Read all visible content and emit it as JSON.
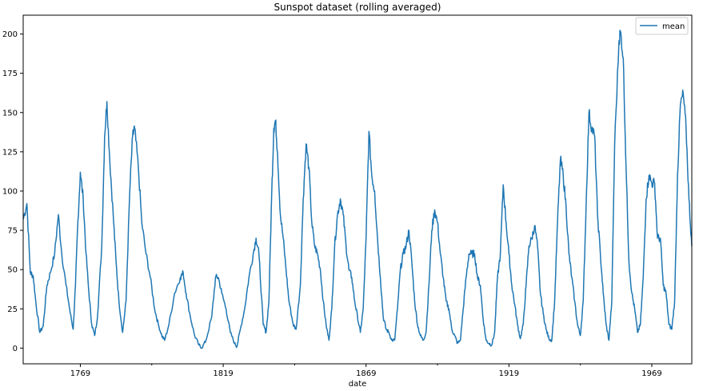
{
  "chart_data": {
    "type": "line",
    "title": "Sunspot dataset (rolling averaged)",
    "xlabel": "date",
    "ylabel": "",
    "xlim": [
      1749,
      1983
    ],
    "ylim": [
      -10,
      212
    ],
    "x_ticks": [
      1769,
      1819,
      1869,
      1919,
      1969
    ],
    "y_ticks": [
      0,
      25,
      50,
      75,
      100,
      125,
      150,
      175,
      200
    ],
    "grid": false,
    "legend": {
      "position": "top-right",
      "entries": [
        "mean"
      ]
    },
    "series": [
      {
        "name": "mean",
        "color": "#1f77b4",
        "anchors": [
          [
            1749.0,
            82
          ],
          [
            1750.3,
            92
          ],
          [
            1751.5,
            48
          ],
          [
            1752.5,
            46
          ],
          [
            1753.5,
            28
          ],
          [
            1754.8,
            10
          ],
          [
            1756.0,
            14
          ],
          [
            1757.3,
            40
          ],
          [
            1758.5,
            48
          ],
          [
            1760.0,
            60
          ],
          [
            1761.3,
            85
          ],
          [
            1762.5,
            60
          ],
          [
            1764.0,
            40
          ],
          [
            1765.5,
            22
          ],
          [
            1766.5,
            12
          ],
          [
            1767.3,
            40
          ],
          [
            1768.0,
            75
          ],
          [
            1769.0,
            112
          ],
          [
            1770.0,
            95
          ],
          [
            1771.0,
            60
          ],
          [
            1772.0,
            35
          ],
          [
            1773.0,
            15
          ],
          [
            1774.0,
            8
          ],
          [
            1775.0,
            20
          ],
          [
            1776.5,
            65
          ],
          [
            1777.5,
            135
          ],
          [
            1778.3,
            157
          ],
          [
            1779.3,
            120
          ],
          [
            1780.5,
            85
          ],
          [
            1781.5,
            55
          ],
          [
            1782.5,
            30
          ],
          [
            1783.8,
            10
          ],
          [
            1785.0,
            30
          ],
          [
            1786.3,
            100
          ],
          [
            1787.3,
            135
          ],
          [
            1788.0,
            140
          ],
          [
            1789.3,
            115
          ],
          [
            1790.5,
            80
          ],
          [
            1792.0,
            60
          ],
          [
            1793.5,
            45
          ],
          [
            1795.0,
            25
          ],
          [
            1796.3,
            15
          ],
          [
            1797.5,
            8
          ],
          [
            1798.5,
            5
          ],
          [
            1800.0,
            15
          ],
          [
            1802.0,
            35
          ],
          [
            1804.0,
            45
          ],
          [
            1805.0,
            48
          ],
          [
            1806.0,
            35
          ],
          [
            1807.5,
            20
          ],
          [
            1809.0,
            8
          ],
          [
            1810.5,
            2
          ],
          [
            1811.5,
            0
          ],
          [
            1813.0,
            5
          ],
          [
            1815.0,
            20
          ],
          [
            1816.3,
            45
          ],
          [
            1817.3,
            45
          ],
          [
            1818.5,
            35
          ],
          [
            1820.0,
            25
          ],
          [
            1821.5,
            10
          ],
          [
            1823.0,
            3
          ],
          [
            1823.8,
            1
          ],
          [
            1825.0,
            12
          ],
          [
            1826.5,
            25
          ],
          [
            1828.0,
            45
          ],
          [
            1829.5,
            60
          ],
          [
            1830.5,
            70
          ],
          [
            1831.5,
            60
          ],
          [
            1833.0,
            15
          ],
          [
            1834.0,
            10
          ],
          [
            1835.0,
            30
          ],
          [
            1836.0,
            100
          ],
          [
            1836.7,
            140
          ],
          [
            1837.3,
            145
          ],
          [
            1838.0,
            125
          ],
          [
            1839.0,
            85
          ],
          [
            1840.0,
            70
          ],
          [
            1841.0,
            50
          ],
          [
            1842.0,
            30
          ],
          [
            1843.5,
            15
          ],
          [
            1844.5,
            12
          ],
          [
            1846.0,
            40
          ],
          [
            1847.0,
            95
          ],
          [
            1848.0,
            130
          ],
          [
            1849.0,
            115
          ],
          [
            1850.0,
            80
          ],
          [
            1851.0,
            65
          ],
          [
            1852.0,
            60
          ],
          [
            1853.0,
            50
          ],
          [
            1854.0,
            30
          ],
          [
            1855.0,
            15
          ],
          [
            1856.0,
            5
          ],
          [
            1857.0,
            25
          ],
          [
            1858.0,
            65
          ],
          [
            1859.0,
            85
          ],
          [
            1860.0,
            95
          ],
          [
            1861.0,
            85
          ],
          [
            1862.0,
            65
          ],
          [
            1863.0,
            50
          ],
          [
            1864.0,
            45
          ],
          [
            1865.0,
            30
          ],
          [
            1866.0,
            20
          ],
          [
            1867.0,
            10
          ],
          [
            1868.0,
            25
          ],
          [
            1869.0,
            70
          ],
          [
            1870.0,
            138
          ],
          [
            1871.0,
            110
          ],
          [
            1872.0,
            100
          ],
          [
            1873.0,
            70
          ],
          [
            1874.0,
            45
          ],
          [
            1875.0,
            20
          ],
          [
            1876.0,
            12
          ],
          [
            1877.0,
            10
          ],
          [
            1878.0,
            5
          ],
          [
            1879.0,
            5
          ],
          [
            1880.0,
            25
          ],
          [
            1881.0,
            50
          ],
          [
            1882.0,
            60
          ],
          [
            1883.0,
            65
          ],
          [
            1884.0,
            75
          ],
          [
            1885.0,
            55
          ],
          [
            1886.0,
            30
          ],
          [
            1887.0,
            15
          ],
          [
            1888.0,
            8
          ],
          [
            1889.0,
            5
          ],
          [
            1890.0,
            10
          ],
          [
            1891.0,
            40
          ],
          [
            1892.0,
            75
          ],
          [
            1893.0,
            88
          ],
          [
            1894.0,
            80
          ],
          [
            1895.0,
            60
          ],
          [
            1896.0,
            45
          ],
          [
            1897.0,
            30
          ],
          [
            1898.0,
            25
          ],
          [
            1899.0,
            12
          ],
          [
            1900.0,
            8
          ],
          [
            1901.0,
            3
          ],
          [
            1902.0,
            5
          ],
          [
            1903.0,
            25
          ],
          [
            1904.0,
            45
          ],
          [
            1905.0,
            60
          ],
          [
            1906.0,
            60
          ],
          [
            1907.0,
            60
          ],
          [
            1908.0,
            45
          ],
          [
            1909.0,
            40
          ],
          [
            1910.0,
            18
          ],
          [
            1911.0,
            5
          ],
          [
            1912.0,
            3
          ],
          [
            1913.0,
            2
          ],
          [
            1914.0,
            10
          ],
          [
            1915.0,
            45
          ],
          [
            1916.0,
            60
          ],
          [
            1917.0,
            104
          ],
          [
            1918.0,
            80
          ],
          [
            1919.0,
            60
          ],
          [
            1920.0,
            40
          ],
          [
            1921.0,
            28
          ],
          [
            1922.0,
            15
          ],
          [
            1923.0,
            6
          ],
          [
            1924.0,
            15
          ],
          [
            1925.0,
            40
          ],
          [
            1926.0,
            65
          ],
          [
            1927.0,
            70
          ],
          [
            1928.0,
            78
          ],
          [
            1929.0,
            65
          ],
          [
            1930.0,
            35
          ],
          [
            1931.0,
            22
          ],
          [
            1932.0,
            12
          ],
          [
            1933.0,
            6
          ],
          [
            1934.0,
            5
          ],
          [
            1935.0,
            30
          ],
          [
            1936.0,
            80
          ],
          [
            1937.0,
            120
          ],
          [
            1938.0,
            110
          ],
          [
            1939.0,
            90
          ],
          [
            1940.0,
            60
          ],
          [
            1941.0,
            45
          ],
          [
            1942.0,
            30
          ],
          [
            1943.0,
            15
          ],
          [
            1944.0,
            8
          ],
          [
            1945.0,
            30
          ],
          [
            1946.0,
            90
          ],
          [
            1947.0,
            150
          ],
          [
            1948.0,
            140
          ],
          [
            1949.0,
            135
          ],
          [
            1950.0,
            85
          ],
          [
            1951.0,
            60
          ],
          [
            1952.0,
            35
          ],
          [
            1953.0,
            15
          ],
          [
            1954.0,
            5
          ],
          [
            1955.0,
            30
          ],
          [
            1956.0,
            130
          ],
          [
            1957.5,
            195
          ],
          [
            1958.0,
            202
          ],
          [
            1959.0,
            185
          ],
          [
            1960.0,
            115
          ],
          [
            1961.0,
            55
          ],
          [
            1962.0,
            35
          ],
          [
            1963.0,
            25
          ],
          [
            1964.0,
            10
          ],
          [
            1965.0,
            15
          ],
          [
            1966.0,
            45
          ],
          [
            1967.0,
            95
          ],
          [
            1968.0,
            110
          ],
          [
            1969.0,
            105
          ],
          [
            1970.0,
            105
          ],
          [
            1971.0,
            70
          ],
          [
            1972.0,
            70
          ],
          [
            1973.0,
            40
          ],
          [
            1974.0,
            35
          ],
          [
            1975.0,
            15
          ],
          [
            1976.0,
            12
          ],
          [
            1977.0,
            30
          ],
          [
            1978.0,
            110
          ],
          [
            1979.0,
            155
          ],
          [
            1980.0,
            162
          ],
          [
            1981.0,
            140
          ],
          [
            1982.0,
            95
          ],
          [
            1983.0,
            65
          ]
        ]
      }
    ]
  }
}
